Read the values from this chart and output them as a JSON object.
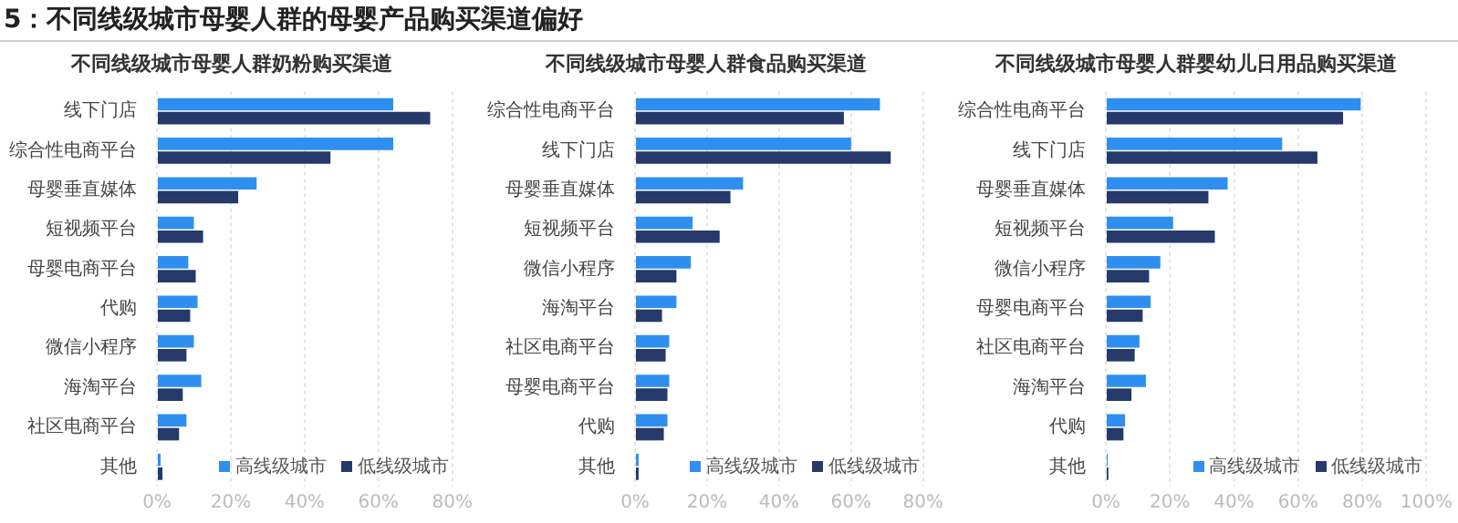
{
  "chart_data": [
    {
      "type": "bar",
      "orientation": "horizontal",
      "annotations": [
        "5：不同线级城市母婴人群的母婴产品购买渠道偏好"
      ],
      "title": "不同线级城市母婴人群奶粉购买渠道",
      "categories": [
        "线下门店",
        "综合性电商平台",
        "母婴垂直媒体",
        "短视频平台",
        "母婴电商平台",
        "代购",
        "微信小程序",
        "海淘平台",
        "社区电商平台",
        "其他"
      ],
      "series": [
        {
          "name": "高线级城市",
          "color": "#2e8ff0",
          "values": [
            64,
            64,
            27,
            10,
            8.5,
            11,
            10,
            12,
            8,
            1
          ]
        },
        {
          "name": "低线级城市",
          "color": "#253a6b",
          "values": [
            74,
            47,
            22,
            12.5,
            10.5,
            9,
            8,
            7,
            6,
            1.5
          ]
        }
      ],
      "xlim": [
        0,
        80
      ],
      "xticks": [
        {
          "value": 0,
          "label": "0%"
        },
        {
          "value": 20,
          "label": "20%"
        },
        {
          "value": 40,
          "label": "40%"
        },
        {
          "value": 60,
          "label": "60%"
        },
        {
          "value": 80,
          "label": "80%"
        }
      ],
      "grid": "x",
      "legend": "bottom right"
    },
    {
      "type": "bar",
      "orientation": "horizontal",
      "title": "不同线级城市母婴人群食品购买渠道",
      "categories": [
        "综合性电商平台",
        "线下门店",
        "母婴垂直媒体",
        "短视频平台",
        "微信小程序",
        "海淘平台",
        "社区电商平台",
        "母婴电商平台",
        "代购",
        "其他"
      ],
      "series": [
        {
          "name": "高线级城市",
          "color": "#2e8ff0",
          "values": [
            68,
            60,
            30,
            16,
            15.5,
            11.5,
            9.5,
            9.5,
            9,
            1
          ]
        },
        {
          "name": "低线级城市",
          "color": "#253a6b",
          "values": [
            58,
            71,
            26.5,
            23.5,
            11.5,
            7.5,
            8.5,
            9,
            8,
            1
          ]
        }
      ],
      "xlim": [
        0,
        80
      ],
      "xticks": [
        {
          "value": 0,
          "label": "0%"
        },
        {
          "value": 20,
          "label": "20%"
        },
        {
          "value": 40,
          "label": "40%"
        },
        {
          "value": 60,
          "label": "60%"
        },
        {
          "value": 80,
          "label": "80%"
        }
      ],
      "grid": "x",
      "legend": "bottom right"
    },
    {
      "type": "bar",
      "orientation": "horizontal",
      "title": "不同线级城市母婴人群婴幼儿日用品购买渠道",
      "categories": [
        "综合性电商平台",
        "线下门店",
        "母婴垂直媒体",
        "短视频平台",
        "微信小程序",
        "母婴电商平台",
        "社区电商平台",
        "海淘平台",
        "代购",
        "其他"
      ],
      "series": [
        {
          "name": "高线级城市",
          "color": "#2e8ff0",
          "values": [
            79.5,
            55,
            38,
            21,
            17,
            14,
            10.5,
            12.5,
            6,
            0.6
          ]
        },
        {
          "name": "低线级城市",
          "color": "#253a6b",
          "values": [
            74,
            66,
            32,
            34,
            13.5,
            11.5,
            9,
            8,
            5.5,
            0.8
          ]
        }
      ],
      "xlim": [
        0,
        100
      ],
      "xticks": [
        {
          "value": 0,
          "label": "0%"
        },
        {
          "value": 20,
          "label": "20%"
        },
        {
          "value": 40,
          "label": "40%"
        },
        {
          "value": 60,
          "label": "60%"
        },
        {
          "value": 80,
          "label": "80%"
        },
        {
          "value": 100,
          "label": "100%"
        }
      ],
      "grid": "x",
      "legend": "bottom right"
    }
  ]
}
